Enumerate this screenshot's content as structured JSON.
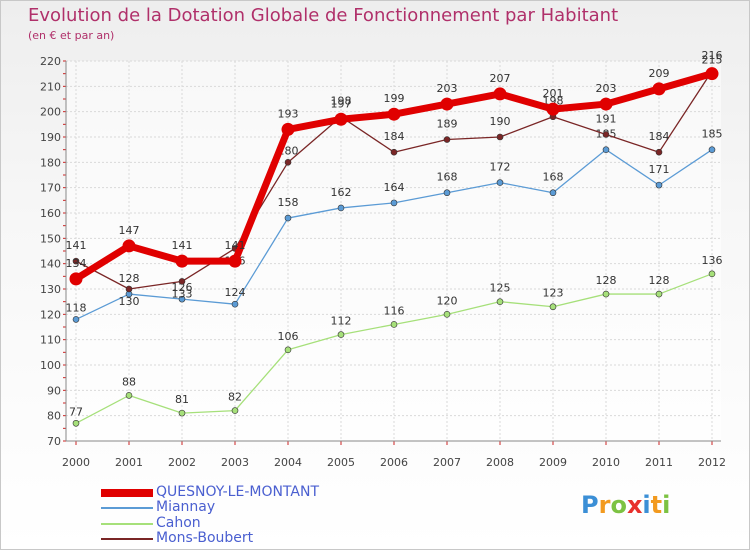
{
  "header": {
    "title": "Evolution de la Dotation Globale de Fonctionnement par Habitant",
    "subtitle": "(en € et par an)"
  },
  "chart_data": {
    "type": "line",
    "title": "Evolution de la Dotation Globale de Fonctionnement par Habitant",
    "subtitle": "(en € et par an)",
    "xlabel": "",
    "ylabel": "",
    "ylim": [
      70,
      220
    ],
    "yticks": [
      70,
      80,
      90,
      100,
      110,
      120,
      130,
      140,
      150,
      160,
      170,
      180,
      190,
      200,
      210,
      220
    ],
    "categories": [
      "2000",
      "2001",
      "2002",
      "2003",
      "2004",
      "2005",
      "2006",
      "2007",
      "2008",
      "2009",
      "2010",
      "2011",
      "2012"
    ],
    "grid": true,
    "legend": "bottom-left",
    "series": [
      {
        "name": "QUESNOY-LE-MONTANT",
        "color": "#e00000",
        "values": [
          134,
          147,
          141,
          141,
          193,
          197,
          199,
          203,
          207,
          201,
          203,
          209,
          215
        ]
      },
      {
        "name": "Miannay",
        "color": "#5b9bd5",
        "values": [
          118,
          128,
          126,
          124,
          158,
          162,
          164,
          168,
          172,
          168,
          185,
          171,
          185
        ]
      },
      {
        "name": "Cahon",
        "color": "#a6e07a",
        "values": [
          77,
          88,
          81,
          82,
          106,
          112,
          116,
          120,
          125,
          123,
          128,
          128,
          136
        ]
      },
      {
        "name": "Mons-Boubert",
        "color": "#7a2626",
        "values": [
          141,
          130,
          133,
          146,
          180,
          198,
          184,
          189,
          190,
          198,
          191,
          184,
          216
        ]
      }
    ]
  },
  "branding": {
    "logo_letters": [
      "P",
      "r",
      "o",
      "x",
      "i",
      "t",
      "i"
    ],
    "logo_colors": [
      "#3b8fd6",
      "#f29a1f",
      "#7cc242",
      "#e8302c",
      "#3b8fd6",
      "#f29a1f",
      "#7cc242"
    ]
  }
}
